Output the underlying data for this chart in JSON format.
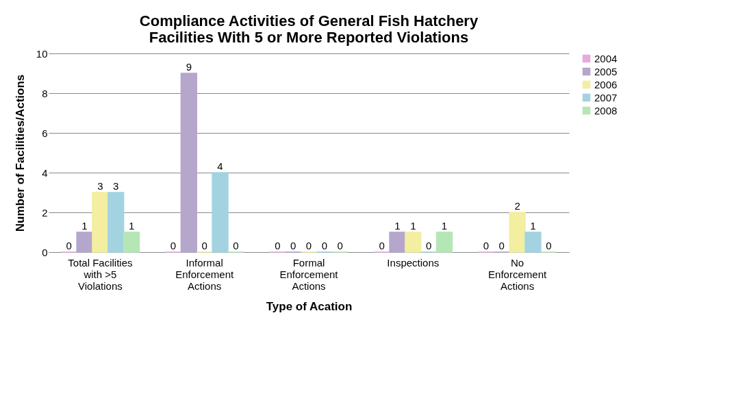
{
  "chart_data": {
    "type": "bar",
    "title": "Compliance Activities of General Fish Hatchery\nFacilities With 5 or  More Reported Violations",
    "xlabel": "Type of Acation",
    "ylabel": "Number of Facilities/Actions",
    "categories": [
      "Total Facilities\nwith >5\nViolations",
      "Informal\nEnforcement\nActions",
      "Formal\nEnforcement\nActions",
      "Inspections",
      "No\nEnforcement\nActions"
    ],
    "series": [
      {
        "name": "2004",
        "color": "#e8a9dc",
        "values": [
          0,
          0,
          0,
          0,
          0
        ]
      },
      {
        "name": "2005",
        "color": "#b5a6cc",
        "values": [
          1,
          9,
          0,
          1,
          0
        ]
      },
      {
        "name": "2006",
        "color": "#f3eea0",
        "values": [
          3,
          0,
          0,
          1,
          2
        ]
      },
      {
        "name": "2007",
        "color": "#a3d3e0",
        "values": [
          3,
          4,
          0,
          0,
          1
        ]
      },
      {
        "name": "2008",
        "color": "#b5e6b5",
        "values": [
          1,
          0,
          0,
          1,
          0
        ]
      }
    ],
    "ylim": [
      0,
      10
    ],
    "yticks": [
      0,
      2,
      4,
      6,
      8,
      10
    ],
    "grid": "y",
    "legend": "right",
    "data_labels": true
  }
}
